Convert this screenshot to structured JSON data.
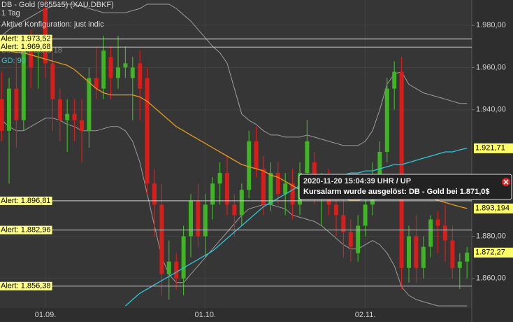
{
  "chart_data": {
    "type": "candlestick",
    "title": "DB - Gold (965515) (XAU.DBKF)",
    "subtitle": "1 Tag",
    "annotation": "Aktive Konfiguration: just indic",
    "categories": [
      null,
      null,
      null,
      null,
      null,
      null,
      "01.09.",
      null,
      null,
      null,
      null,
      null,
      null,
      null,
      null,
      null,
      null,
      null,
      null,
      null,
      null,
      null,
      null,
      null,
      null,
      null,
      null,
      null,
      "01.10.",
      null,
      null,
      null,
      null,
      null,
      null,
      null,
      null,
      null,
      null,
      null,
      null,
      null,
      null,
      null,
      null,
      null,
      null,
      null,
      null,
      null,
      "02.11.",
      null,
      null,
      null,
      null,
      null,
      null,
      null,
      null,
      null,
      null,
      null,
      null,
      null,
      null
    ],
    "open": [
      1945,
      1930,
      1950,
      1935,
      1968,
      1968,
      1988,
      1962,
      1945,
      1935,
      1938,
      1935,
      1930,
      1955,
      1950,
      1965,
      1955,
      1960,
      1955,
      1962,
      1955,
      1905,
      1895,
      1862,
      1868,
      1860,
      1880,
      1897,
      1880,
      1895,
      1905,
      1910,
      1895,
      1890,
      1902,
      1925,
      1912,
      1895,
      1910,
      1900,
      1905,
      1895,
      1910,
      1915,
      1900,
      1905,
      1895,
      1890,
      1882,
      1872,
      1885,
      1895,
      1905,
      1920,
      1950,
      1958,
      1865,
      1880,
      1865,
      1875,
      1888,
      1885,
      1878,
      1865,
      1868
    ],
    "high": [
      1958,
      1955,
      1965,
      1972,
      1978,
      1975,
      1992,
      1970,
      1950,
      1945,
      1945,
      1945,
      1960,
      1970,
      1975,
      1970,
      1975,
      1970,
      1965,
      1968,
      1960,
      1912,
      1905,
      1878,
      1872,
      1885,
      1900,
      1905,
      1900,
      1908,
      1915,
      1918,
      1900,
      1905,
      1930,
      1932,
      1918,
      1915,
      1915,
      1910,
      1912,
      1915,
      1935,
      1920,
      1910,
      1912,
      1900,
      1905,
      1888,
      1890,
      1898,
      1915,
      1925,
      1955,
      1963,
      1965,
      1885,
      1890,
      1880,
      1890,
      1892,
      1895,
      1885,
      1872,
      1875
    ],
    "low": [
      1925,
      1905,
      1922,
      1930,
      1950,
      1950,
      1955,
      1930,
      1925,
      1920,
      1925,
      1915,
      1922,
      1945,
      1945,
      1945,
      1950,
      1955,
      1935,
      1935,
      1900,
      1880,
      1852,
      1850,
      1855,
      1852,
      1870,
      1875,
      1870,
      1888,
      1895,
      1890,
      1880,
      1885,
      1898,
      1908,
      1890,
      1892,
      1895,
      1890,
      1888,
      1890,
      1905,
      1895,
      1885,
      1890,
      1880,
      1870,
      1868,
      1868,
      1880,
      1890,
      1900,
      1915,
      1940,
      1855,
      1858,
      1858,
      1860,
      1870,
      1872,
      1868,
      1860,
      1855,
      1860
    ],
    "close": [
      1930,
      1950,
      1935,
      1968,
      1960,
      1970,
      1962,
      1945,
      1935,
      1938,
      1935,
      1930,
      1955,
      1950,
      1968,
      1955,
      1960,
      1962,
      1960,
      1950,
      1905,
      1895,
      1862,
      1868,
      1860,
      1880,
      1897,
      1880,
      1895,
      1905,
      1910,
      1895,
      1890,
      1902,
      1925,
      1912,
      1895,
      1910,
      1900,
      1905,
      1895,
      1910,
      1925,
      1900,
      1905,
      1895,
      1890,
      1882,
      1875,
      1885,
      1895,
      1905,
      1920,
      1950,
      1958,
      1865,
      1880,
      1865,
      1875,
      1888,
      1885,
      1878,
      1865,
      1868,
      1872.27
    ],
    "up_color": "#3fb424",
    "down_color": "#d81e1a",
    "series": [
      {
        "name": "Bollinger Band 18",
        "color": "#e49a1e",
        "values": [
          1968,
          1968,
          1967,
          1967,
          1966,
          1965,
          1964,
          1963,
          1962,
          1961,
          1959,
          1956,
          1953,
          1950,
          1948,
          1947,
          1947,
          1947,
          1947,
          1946,
          1944,
          1941,
          1938,
          1935,
          1932,
          1930,
          1928,
          1926,
          1924,
          1922,
          1920,
          1918,
          1916,
          1914,
          1913,
          1912,
          1911,
          1909,
          1908,
          1906,
          1904,
          1902,
          1901,
          1900,
          1900,
          1900,
          1899,
          1898,
          1897,
          1897,
          1898,
          1899,
          1900,
          1902,
          1904,
          1903,
          1902,
          1900,
          1899,
          1898,
          1897,
          1896,
          1895,
          1894,
          1893.194
        ]
      },
      {
        "name": "GD: 90",
        "color": "#2cc7d8",
        "values": [
          null,
          null,
          null,
          null,
          null,
          null,
          null,
          null,
          null,
          null,
          null,
          null,
          null,
          null,
          null,
          null,
          null,
          1847,
          1850,
          1853,
          1855,
          1857,
          1859,
          1861,
          1863,
          1865,
          1867,
          1869,
          1871,
          1873,
          1876,
          1879,
          1882,
          1885,
          1888,
          1891,
          1894,
          1896,
          1898,
          1900,
          1902,
          1904,
          1905,
          1906,
          1907,
          1908,
          1909,
          1909,
          1910,
          1910,
          1911,
          1911,
          1912,
          1913,
          1914,
          1914,
          1915,
          1916,
          1917,
          1918,
          1919,
          1920,
          1920,
          1921,
          1921.71
        ]
      }
    ],
    "bands": {
      "color": "#9c9c9c",
      "upper": [
        1975,
        1978,
        1980,
        1982,
        1984,
        1986,
        1988,
        1989,
        1990,
        1990,
        1990,
        1989,
        1988,
        1987,
        1986,
        1986,
        1986,
        1986,
        1987,
        1988,
        1990,
        1990,
        1990,
        1990,
        1988,
        1985,
        1982,
        1978,
        1974,
        1970,
        1967,
        1962,
        1950,
        1938,
        1935,
        1933,
        1930,
        1928,
        1928,
        1927,
        1927,
        1927,
        1928,
        1927,
        1926,
        1925,
        1924,
        1923,
        1923,
        1923,
        1925,
        1930,
        1940,
        1952,
        1957,
        1958,
        1952,
        1950,
        1948,
        1947,
        1946,
        1945,
        1944,
        1943,
        1943
      ],
      "lower": [
        1935,
        1932,
        1930,
        1930,
        1932,
        1934,
        1936,
        1936,
        1935,
        1933,
        1932,
        1930,
        1930,
        1930,
        1931,
        1932,
        1932,
        1930,
        1925,
        1915,
        1900,
        1885,
        1870,
        1862,
        1858,
        1858,
        1862,
        1866,
        1870,
        1874,
        1878,
        1882,
        1886,
        1890,
        1893,
        1894,
        1895,
        1895,
        1894,
        1893,
        1890,
        1889,
        1888,
        1887,
        1885,
        1882,
        1879,
        1876,
        1874,
        1874,
        1876,
        1878,
        1876,
        1872,
        1866,
        1856,
        1852,
        1850,
        1849,
        1848,
        1847,
        1847,
        1847,
        1847,
        1847
      ]
    },
    "ylim": [
      1846,
      1992
    ],
    "yticks": [
      {
        "value": 1860,
        "label": "1.860,00"
      },
      {
        "value": 1880,
        "label": "1.880,00"
      },
      {
        "value": 1940,
        "label": "1.940,00"
      },
      {
        "value": 1960,
        "label": "1.960,00"
      },
      {
        "value": 1980,
        "label": "1.980,00"
      }
    ],
    "alerts": {
      "values": [
        1973.52,
        1969.68,
        1896.81,
        1882.96,
        1856.38
      ],
      "value_labels": [
        "Alert: 1.973,52",
        "Alert: 1.969,68",
        "Alert: 1.896,81",
        "Alert: 1.882,96",
        "Alert: 1.856,38"
      ]
    },
    "price_tags": {
      "values": [
        1921.71,
        1893.194,
        1872.27
      ],
      "value_labels": [
        "1.921,71",
        "1.893,194",
        "1.872,27"
      ]
    },
    "alarm_popup": {
      "time": "2020-11-20 15:04:39 UHR / UP",
      "message": "Kursalarm wurde ausgelöst: DB - Gold bei 1.871,0$"
    }
  }
}
